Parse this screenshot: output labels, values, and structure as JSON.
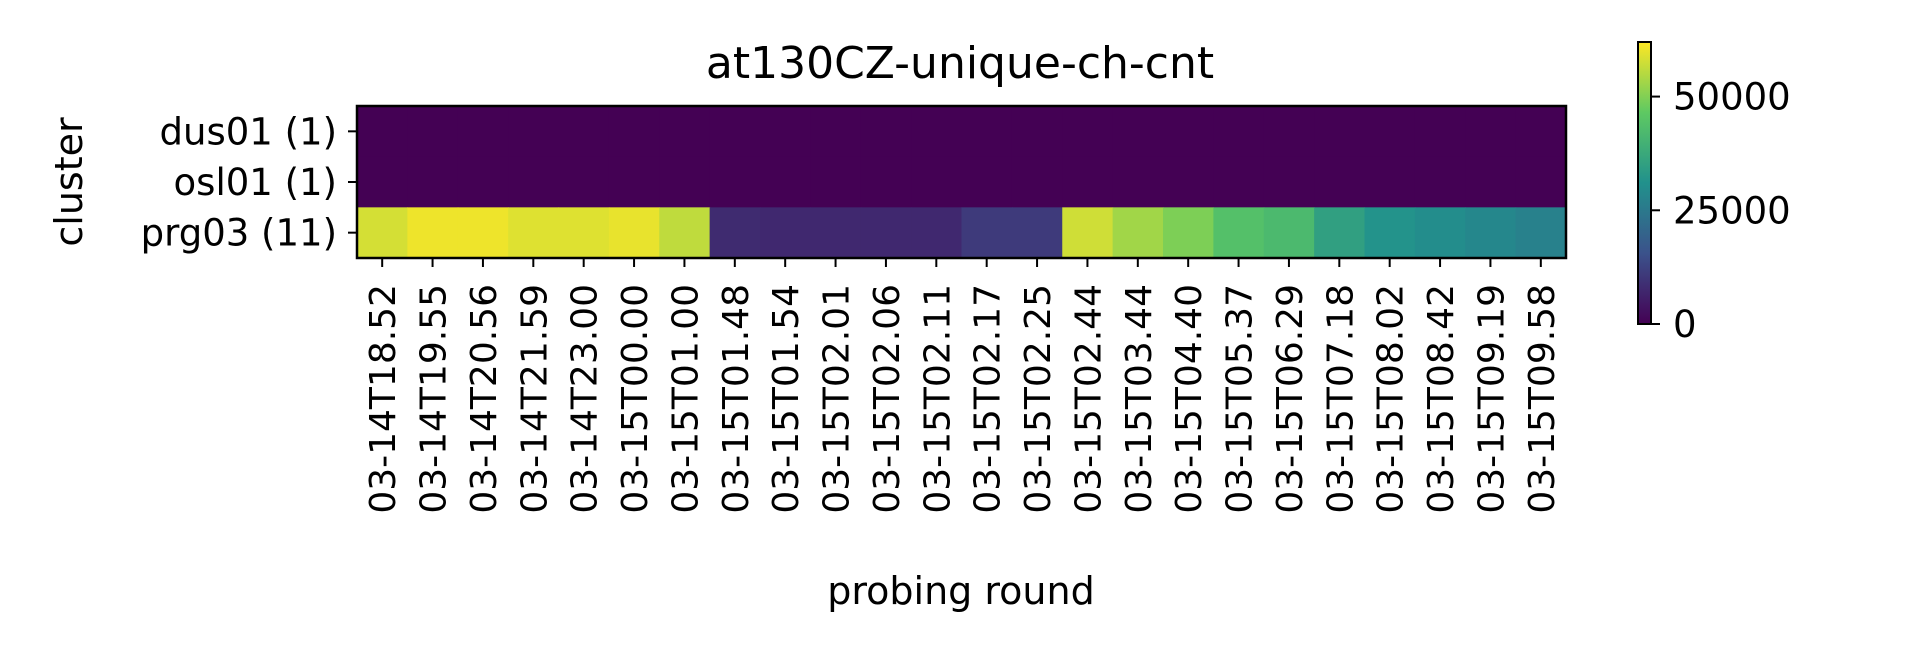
{
  "chart_data": {
    "type": "heatmap",
    "title": "at130CZ-unique-ch-cnt",
    "xlabel": "probing round",
    "ylabel": "cluster",
    "rows": [
      "dus01 (1)",
      "osl01 (1)",
      "prg03 (11)"
    ],
    "columns": [
      "03-14T18.52",
      "03-14T19.55",
      "03-14T20.56",
      "03-14T21.59",
      "03-14T23.00",
      "03-15T00.00",
      "03-15T01.00",
      "03-15T01.48",
      "03-15T01.54",
      "03-15T02.01",
      "03-15T02.06",
      "03-15T02.11",
      "03-15T02.17",
      "03-15T02.25",
      "03-15T02.44",
      "03-15T03.44",
      "03-15T04.40",
      "03-15T05.37",
      "03-15T06.29",
      "03-15T07.18",
      "03-15T08.02",
      "03-15T08.42",
      "03-15T09.19",
      "03-15T09.58"
    ],
    "values": [
      [
        0,
        0,
        0,
        0,
        0,
        0,
        0,
        0,
        0,
        0,
        0,
        0,
        0,
        0,
        0,
        0,
        0,
        0,
        0,
        0,
        0,
        0,
        0,
        0
      ],
      [
        0,
        0,
        0,
        0,
        0,
        0,
        0,
        0,
        0,
        0,
        0,
        0,
        0,
        0,
        0,
        0,
        0,
        0,
        0,
        0,
        0,
        0,
        0,
        0
      ],
      [
        58000,
        60500,
        60500,
        59000,
        59000,
        60000,
        56000,
        8000,
        7500,
        7500,
        7500,
        7500,
        11000,
        11000,
        57500,
        53000,
        49500,
        44000,
        42000,
        35000,
        31500,
        30000,
        28500,
        27000
      ]
    ],
    "colorbar": {
      "min": 0,
      "max": 62000,
      "ticks": [
        0,
        25000,
        50000
      ],
      "colormap": "viridis"
    },
    "grid": false
  }
}
